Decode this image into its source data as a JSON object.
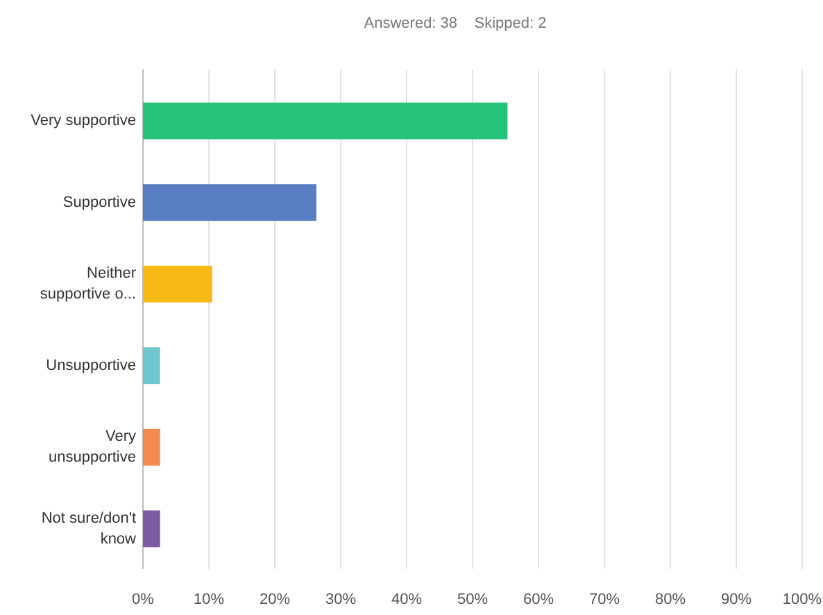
{
  "chart_data": {
    "type": "bar",
    "orientation": "horizontal",
    "title": "Answered: 38    Skipped: 2",
    "categories": [
      "Very supportive",
      "Supportive",
      "Neither supportive o...",
      "Unsupportive",
      "Very unsupportive",
      "Not sure/don't know"
    ],
    "values": [
      55.3,
      26.3,
      10.5,
      2.6,
      2.6,
      2.6
    ],
    "colors": [
      "#26c17a",
      "#5a7ec4",
      "#f6b915",
      "#6fc6cf",
      "#f38b50",
      "#7b5ca5"
    ],
    "xlim": [
      0,
      100
    ],
    "xticks": [
      {
        "value": 0,
        "label": "0%"
      },
      {
        "value": 10,
        "label": "10%"
      },
      {
        "value": 20,
        "label": "20%"
      },
      {
        "value": 30,
        "label": "30%"
      },
      {
        "value": 40,
        "label": "40%"
      },
      {
        "value": 50,
        "label": "50%"
      },
      {
        "value": 60,
        "label": "60%"
      },
      {
        "value": 70,
        "label": "70%"
      },
      {
        "value": 80,
        "label": "80%"
      },
      {
        "value": 90,
        "label": "90%"
      },
      {
        "value": 100,
        "label": "100%"
      }
    ],
    "grid": "x"
  }
}
